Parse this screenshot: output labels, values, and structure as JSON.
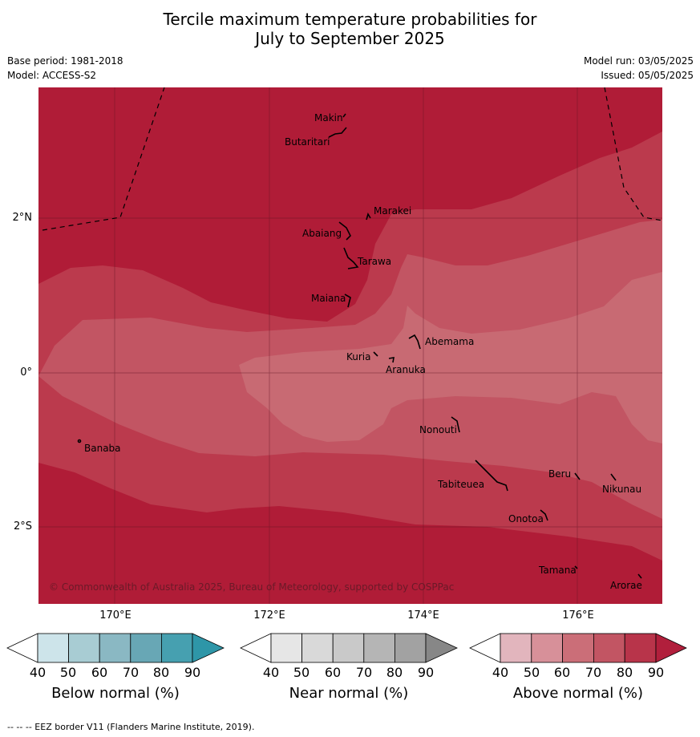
{
  "title": {
    "line1": "Tercile maximum temperature probabilities for",
    "line2": "July to September 2025"
  },
  "meta": {
    "base_period": "Base period: 1981-2018",
    "model": "Model: ACCESS-S2",
    "model_run": "Model run: 03/05/2025",
    "issued": "Issued: 05/05/2025"
  },
  "map": {
    "copyright": "© Commonwealth of Australia 2025, Bureau of Meteorology, supported by COSPPac",
    "lat_labels": [
      "2°N",
      "0°",
      "2°S"
    ],
    "lon_labels": [
      "170°E",
      "172°E",
      "174°E",
      "176°E"
    ],
    "places": {
      "makin": "Makin",
      "butaritari": "Butaritari",
      "marakei": "Marakei",
      "abaiang": "Abaiang",
      "tarawa": "Tarawa",
      "maiana": "Maiana",
      "abemama": "Abemama",
      "kuria": "Kuria",
      "aranuka": "Aranuka",
      "nonouti": "Nonouti",
      "banaba": "Banaba",
      "beru": "Beru",
      "tabiteuea": "Tabiteuea",
      "nikunau": "Nikunau",
      "onotoa": "Onotoa",
      "tamana": "Tamana",
      "arorae": "Arorae"
    },
    "colors": {
      "above_80_90": "#b01c37",
      "above_70_80": "#bb3a4d",
      "above_60_70": "#c25563",
      "above_50_60": "#c86a73"
    }
  },
  "colorbars": {
    "ticks": [
      "40",
      "50",
      "60",
      "70",
      "80",
      "90"
    ],
    "below": {
      "label": "Below normal (%)",
      "colors": [
        "#cde4ea",
        "#a8ccd3",
        "#8ab8c3",
        "#68a7b5",
        "#46a0b0",
        "#2e96a8"
      ]
    },
    "near": {
      "label": "Near normal (%)",
      "colors": [
        "#e6e6e6",
        "#d9d9d9",
        "#c9c9c9",
        "#b5b5b5",
        "#a2a2a2",
        "#878787"
      ]
    },
    "above": {
      "label": "Above normal (%)",
      "colors": [
        "#e2b5bd",
        "#d79099",
        "#cb6e78",
        "#c25563",
        "#b8344a",
        "#b11f3c"
      ]
    }
  },
  "footnote": "--  --  -- EEZ border V11 (Flanders Marine Institute, 2019)."
}
